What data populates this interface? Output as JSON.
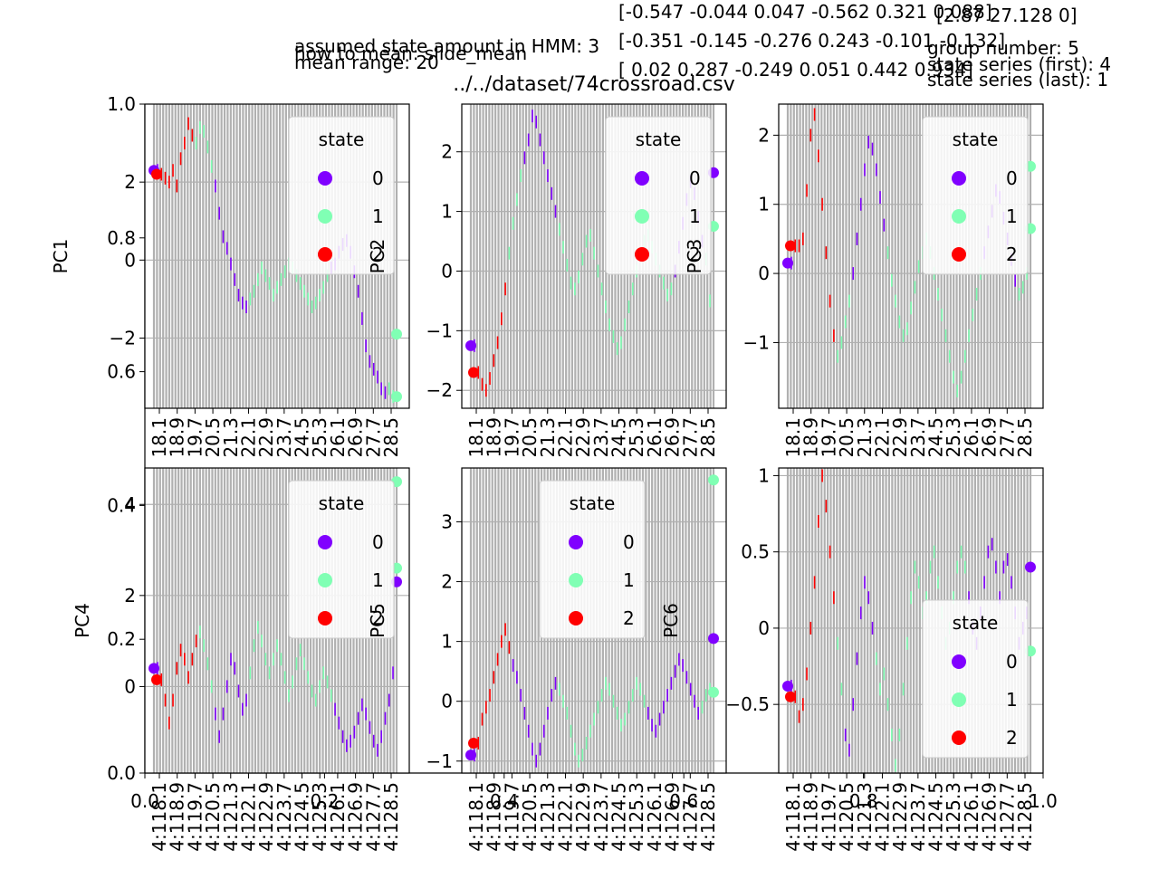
{
  "figure": {
    "title": "../../dataset/74crossroad.csv",
    "overlay_lines": [
      "assumed state amount in HMM: 3",
      "how to mean: slide_mean",
      "mean range: 20"
    ],
    "matrix_rows": [
      "[-0.547 -0.044  0.047 -0.562  0.321  0.088]",
      "[-0.351 -0.145 -0.276  0.243 -0.101 -0.132]",
      "[ 0.02   0.287 -0.249  0.051  0.442  0.934]"
    ],
    "overlay_right": [
      "[2.87 27.128 0]",
      "group number: 5",
      "state series (first): 4",
      "state series (last): 1"
    ],
    "bg_axis": {
      "xticks": [
        "0.0",
        "0.2",
        "0.4",
        "0.6",
        "0.8",
        "1.0"
      ],
      "yticks": [
        "0.0",
        "0.2",
        "0.4",
        "0.6",
        "0.8",
        "1.0"
      ]
    },
    "tick_labels": [
      "18.1",
      "18.9",
      "19.7",
      "20.5",
      "21.3",
      "22.1",
      "22.9",
      "23.7",
      "24.5",
      "25.3",
      "26.1",
      "26.9",
      "27.7",
      "28.5"
    ],
    "tick_prefix": "4:1"
  },
  "legend": {
    "title": "state",
    "entries": [
      {
        "label": "0",
        "color": "#8000ff"
      },
      {
        "label": "1",
        "color": "#80ffb4"
      },
      {
        "label": "2",
        "color": "#ff0000"
      }
    ]
  },
  "chart_data": [
    {
      "type": "scatter",
      "ylabel": "PC1",
      "yticks": [
        -2,
        0,
        2
      ],
      "ylim": [
        -3.8,
        4.0
      ],
      "values": [
        2.3,
        2.2,
        2.1,
        2.0,
        2.3,
        1.9,
        2.6,
        3.0,
        3.5,
        3.2,
        3.0,
        3.4,
        3.3,
        2.9,
        2.4,
        1.9,
        1.2,
        0.6,
        0.3,
        -0.1,
        -0.5,
        -0.9,
        -1.1,
        -1.2,
        -1.0,
        -0.8,
        -0.5,
        -0.2,
        -0.4,
        -0.6,
        -0.9,
        -0.7,
        -0.5,
        -0.3,
        -0.1,
        -0.2,
        -0.4,
        -0.6,
        -0.8,
        -1.0,
        -1.2,
        -1.1,
        -0.9,
        -0.7,
        -0.4,
        -0.2,
        -0.1,
        0.2,
        0.4,
        0.5,
        0.2,
        -0.3,
        -0.8,
        -1.5,
        -2.2,
        -2.6,
        -2.8,
        -3.0,
        -3.3,
        -3.4,
        -3.3,
        -3.5
      ],
      "states": [
        0,
        2,
        2,
        2,
        2,
        2,
        2,
        2,
        2,
        2,
        1,
        1,
        1,
        1,
        1,
        0,
        0,
        0,
        0,
        0,
        0,
        0,
        0,
        0,
        1,
        1,
        1,
        1,
        1,
        1,
        1,
        1,
        1,
        1,
        1,
        1,
        1,
        1,
        1,
        1,
        1,
        1,
        1,
        1,
        1,
        0,
        0,
        0,
        0,
        0,
        0,
        0,
        0,
        0,
        0,
        0,
        0,
        0,
        0,
        0,
        1,
        1
      ],
      "end_markers": [
        {
          "v": -1.9,
          "s": 1
        },
        {
          "v": -3.5,
          "s": 1
        }
      ]
    },
    {
      "type": "scatter",
      "ylabel": "PC2",
      "yticks": [
        -2,
        -1,
        0,
        1,
        2
      ],
      "ylim": [
        -2.3,
        2.8
      ],
      "values": [
        -1.25,
        -1.7,
        -1.9,
        -2.0,
        -1.8,
        -1.5,
        -1.2,
        -0.8,
        -0.3,
        0.3,
        0.8,
        1.2,
        1.6,
        1.9,
        2.2,
        2.6,
        2.5,
        2.2,
        1.9,
        1.6,
        1.3,
        1.0,
        0.7,
        0.4,
        0.1,
        -0.2,
        -0.3,
        -0.1,
        0.2,
        0.5,
        0.6,
        0.3,
        0.0,
        -0.3,
        -0.6,
        -0.9,
        -1.1,
        -1.3,
        -1.2,
        -0.9,
        -0.6,
        -0.3,
        0.0,
        0.3,
        0.5,
        0.6,
        0.4,
        0.2,
        0.0,
        -0.2,
        -0.4,
        -0.3,
        0.0,
        0.4,
        0.8,
        1.2,
        1.5,
        1.3,
        0.9,
        0.5,
        0.2,
        -0.5
      ],
      "states": [
        0,
        2,
        2,
        2,
        2,
        2,
        2,
        2,
        2,
        1,
        1,
        1,
        1,
        0,
        0,
        0,
        0,
        0,
        0,
        0,
        0,
        0,
        1,
        1,
        1,
        1,
        1,
        1,
        1,
        1,
        1,
        1,
        1,
        1,
        1,
        1,
        1,
        1,
        1,
        1,
        1,
        1,
        1,
        1,
        1,
        1,
        1,
        1,
        1,
        1,
        1,
        1,
        0,
        0,
        0,
        0,
        0,
        0,
        0,
        0,
        1,
        1
      ],
      "end_markers": [
        {
          "v": 1.65,
          "s": 0
        },
        {
          "v": 0.75,
          "s": 1
        }
      ]
    },
    {
      "type": "scatter",
      "ylabel": "PC3",
      "yticks": [
        -1,
        0,
        1,
        2
      ],
      "ylim": [
        -1.95,
        2.45
      ],
      "values": [
        0.15,
        0.4,
        0.4,
        0.5,
        1.2,
        2.0,
        2.3,
        1.7,
        1.0,
        0.3,
        -0.4,
        -0.9,
        -1.2,
        -1.0,
        -0.7,
        -0.4,
        0.0,
        0.5,
        1.0,
        1.5,
        1.9,
        1.8,
        1.5,
        1.1,
        0.7,
        0.3,
        -0.1,
        -0.4,
        -0.7,
        -0.9,
        -0.8,
        -0.5,
        -0.2,
        0.1,
        0.3,
        0.5,
        0.3,
        0.0,
        -0.3,
        -0.6,
        -0.9,
        -1.2,
        -1.5,
        -1.7,
        -1.5,
        -1.2,
        -0.9,
        -0.6,
        -0.3,
        0.0,
        0.3,
        0.6,
        0.9,
        1.2,
        1.1,
        0.8,
        0.5,
        0.2,
        -0.1,
        -0.3,
        -0.2,
        0.0
      ],
      "states": [
        0,
        2,
        2,
        2,
        2,
        2,
        2,
        2,
        2,
        2,
        2,
        2,
        1,
        1,
        1,
        1,
        0,
        0,
        0,
        0,
        0,
        0,
        0,
        0,
        0,
        1,
        1,
        1,
        1,
        1,
        1,
        1,
        1,
        1,
        1,
        1,
        1,
        1,
        1,
        1,
        1,
        1,
        1,
        1,
        1,
        1,
        1,
        1,
        1,
        1,
        0,
        0,
        0,
        0,
        0,
        0,
        0,
        0,
        0,
        1,
        1,
        1
      ],
      "end_markers": [
        {
          "v": 1.55,
          "s": 1
        },
        {
          "v": 0.65,
          "s": 1
        }
      ]
    },
    {
      "type": "scatter",
      "ylabel": "PC4",
      "yticks": [
        0,
        2,
        4
      ],
      "ylim": [
        -1.9,
        4.8
      ],
      "values": [
        0.4,
        0.15,
        -0.3,
        -0.8,
        -0.3,
        0.4,
        0.8,
        0.6,
        0.2,
        0.6,
        1.0,
        1.2,
        0.9,
        0.5,
        0.0,
        -0.6,
        -1.1,
        -0.6,
        0.0,
        0.6,
        0.4,
        -0.1,
        -0.5,
        -0.3,
        0.3,
        0.9,
        1.3,
        1.0,
        0.6,
        0.3,
        0.6,
        0.9,
        0.6,
        0.2,
        -0.2,
        0.1,
        0.5,
        0.8,
        0.5,
        0.2,
        -0.1,
        -0.3,
        0.0,
        0.3,
        0.1,
        -0.2,
        -0.5,
        -0.8,
        -1.1,
        -1.3,
        -1.2,
        -1.0,
        -0.7,
        -0.4,
        -0.6,
        -0.9,
        -1.2,
        -1.4,
        -1.1,
        -0.7,
        -0.3,
        0.3
      ],
      "states": [
        0,
        2,
        2,
        2,
        2,
        2,
        2,
        2,
        2,
        2,
        2,
        1,
        1,
        1,
        1,
        0,
        0,
        0,
        0,
        0,
        0,
        0,
        0,
        0,
        1,
        1,
        1,
        1,
        1,
        1,
        1,
        1,
        1,
        1,
        1,
        1,
        1,
        1,
        1,
        1,
        1,
        1,
        1,
        1,
        1,
        1,
        0,
        0,
        0,
        0,
        0,
        0,
        0,
        0,
        0,
        0,
        0,
        0,
        0,
        0,
        0,
        0
      ],
      "end_markers": [
        {
          "v": 4.5,
          "s": 1
        },
        {
          "v": 2.6,
          "s": 1
        },
        {
          "v": 2.3,
          "s": 0
        }
      ]
    },
    {
      "type": "scatter",
      "ylabel": "PC5",
      "yticks": [
        -1,
        0,
        1,
        2,
        3
      ],
      "ylim": [
        -1.2,
        3.9
      ],
      "values": [
        -0.9,
        -0.7,
        -0.3,
        -0.1,
        0.1,
        0.4,
        0.7,
        1.0,
        1.2,
        0.9,
        0.6,
        0.4,
        0.1,
        -0.2,
        -0.5,
        -0.8,
        -1.0,
        -0.8,
        -0.5,
        -0.2,
        0.1,
        0.3,
        0.2,
        0.0,
        -0.2,
        -0.5,
        -0.8,
        -1.0,
        -0.9,
        -0.7,
        -0.5,
        -0.3,
        -0.1,
        0.1,
        0.3,
        0.2,
        0.0,
        -0.2,
        -0.4,
        -0.3,
        -0.1,
        0.1,
        0.3,
        0.2,
        0.0,
        -0.2,
        -0.4,
        -0.5,
        -0.3,
        -0.1,
        0.1,
        0.3,
        0.5,
        0.7,
        0.6,
        0.4,
        0.2,
        0.0,
        -0.2,
        -0.1,
        0.1,
        0.2
      ],
      "states": [
        0,
        2,
        2,
        2,
        2,
        2,
        2,
        2,
        2,
        2,
        0,
        0,
        0,
        0,
        0,
        0,
        0,
        0,
        0,
        0,
        0,
        0,
        1,
        1,
        1,
        1,
        1,
        1,
        1,
        1,
        1,
        1,
        1,
        1,
        1,
        1,
        1,
        1,
        1,
        1,
        1,
        1,
        1,
        1,
        1,
        0,
        0,
        0,
        0,
        0,
        0,
        0,
        0,
        0,
        0,
        0,
        0,
        0,
        0,
        1,
        1,
        1
      ],
      "end_markers": [
        {
          "v": 3.7,
          "s": 1
        },
        {
          "v": 1.05,
          "s": 0
        },
        {
          "v": 0.15,
          "s": 1
        }
      ]
    },
    {
      "type": "scatter",
      "ylabel": "PC6",
      "yticks": [
        -0.5,
        0.0,
        0.5,
        1.0
      ],
      "ylim": [
        -0.95,
        1.05
      ],
      "values": [
        -0.38,
        -0.45,
        -0.58,
        -0.5,
        -0.3,
        0.0,
        0.3,
        0.7,
        1.0,
        0.8,
        0.5,
        0.2,
        -0.1,
        -0.4,
        -0.7,
        -0.8,
        -0.5,
        -0.2,
        0.1,
        0.3,
        0.2,
        0.0,
        -0.2,
        -0.4,
        -0.3,
        -0.5,
        -0.7,
        -0.9,
        -0.7,
        -0.4,
        -0.1,
        0.2,
        0.4,
        0.3,
        0.1,
        0.2,
        0.4,
        0.5,
        0.3,
        0.1,
        -0.1,
        0.0,
        0.2,
        0.4,
        0.5,
        0.4,
        0.2,
        0.0,
        -0.1,
        0.1,
        0.3,
        0.5,
        0.55,
        0.4,
        0.2,
        0.4,
        0.45,
        0.3,
        0.1,
        -0.1,
        0.0,
        0.1
      ],
      "states": [
        0,
        2,
        2,
        2,
        2,
        2,
        2,
        2,
        2,
        2,
        2,
        2,
        1,
        1,
        0,
        0,
        0,
        0,
        0,
        0,
        0,
        0,
        1,
        1,
        1,
        1,
        1,
        1,
        1,
        1,
        1,
        1,
        1,
        1,
        1,
        1,
        1,
        1,
        1,
        1,
        1,
        1,
        1,
        1,
        1,
        1,
        0,
        0,
        0,
        0,
        0,
        0,
        0,
        0,
        0,
        0,
        0,
        0,
        0,
        0,
        0,
        0
      ],
      "end_markers": [
        {
          "v": 0.4,
          "s": 0
        },
        {
          "v": -0.15,
          "s": 1
        }
      ]
    }
  ]
}
